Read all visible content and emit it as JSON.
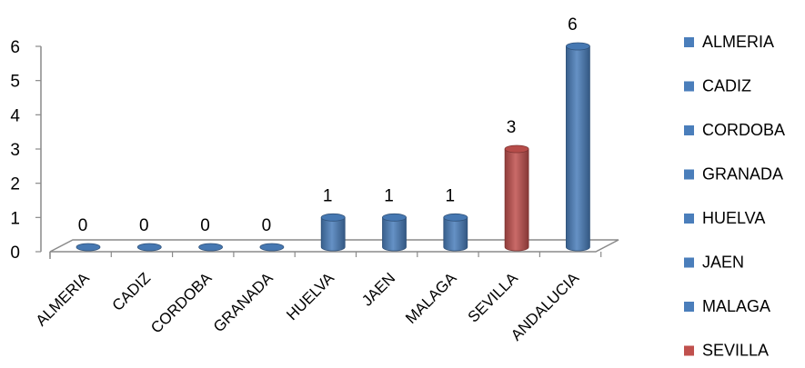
{
  "chart_data": {
    "type": "bar",
    "title": "",
    "xlabel": "",
    "ylabel": "",
    "ylim": [
      0,
      6
    ],
    "yticks": [
      0,
      1,
      2,
      3,
      4,
      5,
      6
    ],
    "categories": [
      "ALMERIA",
      "CADIZ",
      "CORDOBA",
      "GRANADA",
      "HUELVA",
      "JAEN",
      "MALAGA",
      "SEVILLA",
      "ANDALUCIA"
    ],
    "values": [
      0,
      0,
      0,
      0,
      1,
      1,
      1,
      3,
      6
    ],
    "bar_colors": [
      "#4a7ebb",
      "#4a7ebb",
      "#4a7ebb",
      "#4a7ebb",
      "#4a7ebb",
      "#4a7ebb",
      "#4a7ebb",
      "#c0504d",
      "#4a7ebb"
    ],
    "legend": {
      "placement": "right",
      "entries": [
        {
          "name": "ALMERIA",
          "color": "#4a7ebb"
        },
        {
          "name": "CADIZ",
          "color": "#4a7ebb"
        },
        {
          "name": "CORDOBA",
          "color": "#4a7ebb"
        },
        {
          "name": "GRANADA",
          "color": "#4a7ebb"
        },
        {
          "name": "HUELVA",
          "color": "#4a7ebb"
        },
        {
          "name": "JAEN",
          "color": "#4a7ebb"
        },
        {
          "name": "MALAGA",
          "color": "#4a7ebb"
        },
        {
          "name": "SEVILLA",
          "color": "#c0504d"
        }
      ]
    },
    "grid": false,
    "style": "3d-cylinder"
  }
}
